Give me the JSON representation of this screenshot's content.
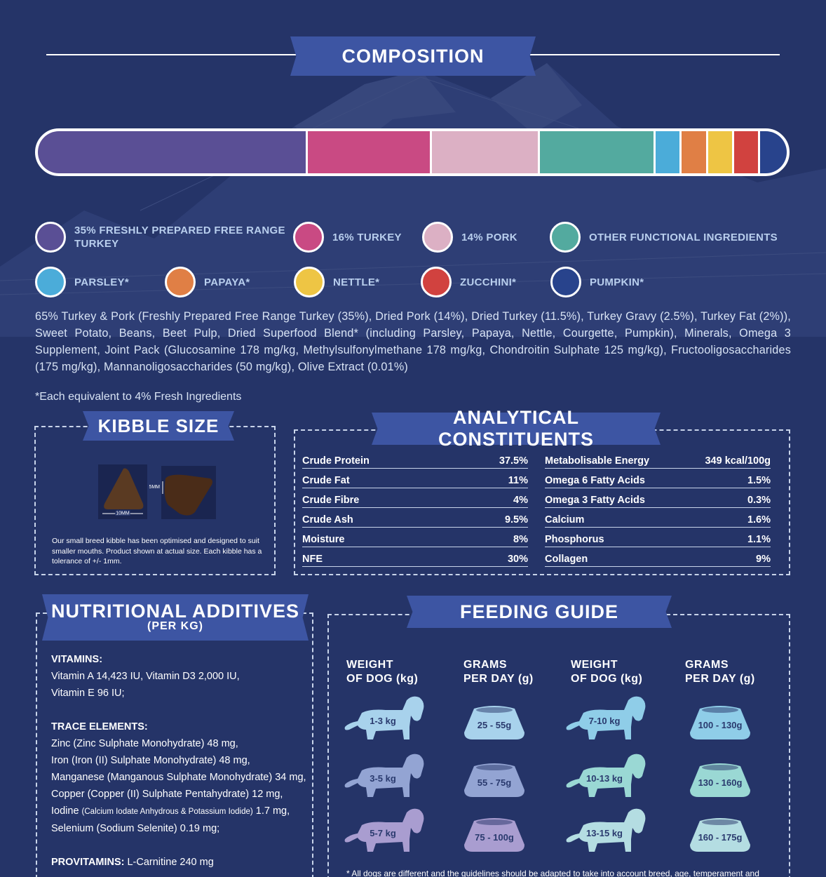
{
  "composition": {
    "title": "COMPOSITION",
    "segments": [
      {
        "name": "Freshly prepared free range turkey",
        "percent": 35,
        "color": "#5a4f95"
      },
      {
        "name": "Turkey",
        "percent": 16,
        "color": "#c94a83"
      },
      {
        "name": "Pork",
        "percent": 14,
        "color": "#dcb0c4"
      },
      {
        "name": "Other functional ingredients",
        "percent": 15,
        "color": "#53aa9f"
      },
      {
        "name": "Parsley",
        "percent": 3.4,
        "color": "#4bacd9"
      },
      {
        "name": "Papaya",
        "percent": 3.4,
        "color": "#e07f45"
      },
      {
        "name": "Nettle",
        "percent": 3.4,
        "color": "#eec544"
      },
      {
        "name": "Zucchini",
        "percent": 3.4,
        "color": "#d1423f"
      },
      {
        "name": "Pumpkin",
        "percent": 3.4,
        "color": "#28438c"
      }
    ],
    "legend": [
      {
        "label": "35% FRESHLY PREPARED FREE RANGE TURKEY",
        "color": "#5a4f95"
      },
      {
        "label": "16% TURKEY",
        "color": "#c94a83"
      },
      {
        "label": "14% PORK",
        "color": "#dcb0c4"
      },
      {
        "label": "OTHER FUNCTIONAL INGREDIENTS",
        "color": "#53aa9f"
      },
      {
        "label": "PARSLEY*",
        "color": "#4bacd9"
      },
      {
        "label": "PAPAYA*",
        "color": "#e07f45"
      },
      {
        "label": "NETTLE*",
        "color": "#eec544"
      },
      {
        "label": "ZUCCHINI*",
        "color": "#d1423f"
      },
      {
        "label": "PUMPKIN*",
        "color": "#28438c"
      }
    ],
    "ingredients": "65% Turkey & Pork (Freshly Prepared Free Range Turkey (35%), Dried Pork (14%), Dried Turkey (11.5%), Turkey Gravy (2.5%), Turkey Fat (2%)), Sweet Potato, Beans, Beet Pulp, Dried Superfood Blend* (including Parsley, Papaya, Nettle, Courgette, Pumpkin), Minerals, Omega 3 Supplement, Joint Pack (Glucosamine 178 mg/kg, Methylsulfonylmethane 178 mg/kg, Chondroitin Sulphate 125 mg/kg), Fructooligosaccharides (175 mg/kg), Mannanoligosaccharides (50 mg/kg), Olive Extract (0.01%)",
    "footnote": "*Each equivalent to 4% Fresh Ingredients"
  },
  "kibble": {
    "title": "KIBBLE SIZE",
    "width_label": "10MM",
    "height_label": "5MM",
    "note": "Our small breed kibble has been optimised and designed to suit smaller mouths. Product shown at actual size. Each kibble has a tolerance of +/- 1mm."
  },
  "analytical": {
    "title": "ANALYTICAL CONSTITUENTS",
    "left": [
      {
        "name": "Crude Protein",
        "value": "37.5%"
      },
      {
        "name": "Crude Fat",
        "value": "11%"
      },
      {
        "name": "Crude Fibre",
        "value": "4%"
      },
      {
        "name": "Crude Ash",
        "value": "9.5%"
      },
      {
        "name": "Moisture",
        "value": "8%"
      },
      {
        "name": "NFE",
        "value": "30%"
      }
    ],
    "right": [
      {
        "name": "Metabolisable Energy",
        "value": "349 kcal/100g"
      },
      {
        "name": "Omega 6 Fatty Acids",
        "value": "1.5%"
      },
      {
        "name": "Omega 3 Fatty Acids",
        "value": "0.3%"
      },
      {
        "name": "Calcium",
        "value": "1.6%"
      },
      {
        "name": "Phosphorus",
        "value": "1.1%"
      },
      {
        "name": "Collagen",
        "value": "9%"
      }
    ]
  },
  "additives": {
    "title": "NUTRITIONAL ADDITIVES",
    "subtitle": "(PER KG)",
    "vitamins_heading": "VITAMINS:",
    "vitamins_lines": [
      "Vitamin A 14,423 IU, Vitamin D3 2,000 IU,",
      "Vitamin E 96 IU;"
    ],
    "trace_heading": "TRACE ELEMENTS:",
    "trace_lines": [
      "Zinc (Zinc Sulphate Monohydrate) 48 mg,",
      "Iron (Iron (II) Sulphate Monohydrate) 48 mg,",
      "Manganese (Manganous Sulphate Monohydrate) 34 mg,",
      "Copper (Copper (II) Sulphate Pentahydrate) 12 mg,"
    ],
    "iodine_a": "Iodine ",
    "iodine_small": "(Calcium Iodate Anhydrous & Potassium Iodide)",
    "iodine_b": " 1.7 mg,",
    "selenium": "Selenium (Sodium Selenite) 0.19 mg;",
    "provitamins_heading": "PROVITAMINS:",
    "provitamins_value": " L-Carnitine 240 mg"
  },
  "feeding": {
    "title": "FEEDING GUIDE",
    "head_weight_1": "WEIGHT",
    "head_weight_2": "OF DOG (kg)",
    "head_grams_1": "GRAMS",
    "head_grams_2": "PER DAY (g)",
    "rows_left": [
      {
        "weight": "1-3 kg",
        "grams": "25 - 55g",
        "color": "#a8d2ec"
      },
      {
        "weight": "3-5 kg",
        "grams": "55 - 75g",
        "color": "#93a4d3"
      },
      {
        "weight": "5-7 kg",
        "grams": "75 - 100g",
        "color": "#a99dd0"
      }
    ],
    "rows_right": [
      {
        "weight": "7-10 kg",
        "grams": "100 - 130g",
        "color": "#8fcde8"
      },
      {
        "weight": "10-13 kg",
        "grams": "130 - 160g",
        "color": "#9ad8d4"
      },
      {
        "weight": "13-15 kg",
        "grams": "160 - 175g",
        "color": "#b4dde2"
      }
    ],
    "note": "* All dogs are different and the guidelines should be adapted to take into account breed, age, temperament and"
  }
}
